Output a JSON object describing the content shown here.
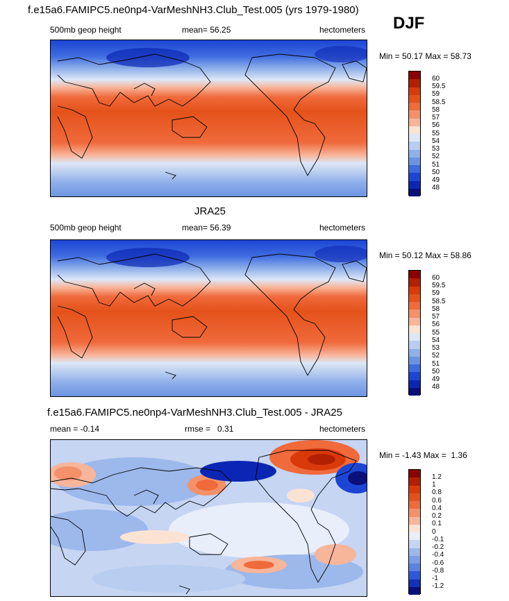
{
  "season": "DJF",
  "panels": [
    {
      "title": "f.e15a6.FAMIPC5.ne0np4-VarMeshNH3.Club_Test.005 (yrs 1979-1980)",
      "left_label": "500mb geop height",
      "mean_label": "mean=",
      "mean_value": "56.25",
      "units": "hectometers",
      "min_label": "Min =",
      "min_value": "50.17",
      "max_label": "Max =",
      "max_value": "58.73",
      "colorbar_labels": [
        "60",
        "59.5",
        "59",
        "58.5",
        "58",
        "57",
        "56",
        "55",
        "54",
        "53",
        "52",
        "51",
        "50",
        "49",
        "48"
      ]
    },
    {
      "title": "JRA25",
      "left_label": "500mb geop height",
      "mean_label": "mean=",
      "mean_value": "56.39",
      "units": "hectometers",
      "min_label": "Min =",
      "min_value": "50.12",
      "max_label": "Max =",
      "max_value": "58.86",
      "colorbar_labels": [
        "60",
        "59.5",
        "59",
        "58.5",
        "58",
        "57",
        "56",
        "55",
        "54",
        "53",
        "52",
        "51",
        "50",
        "49",
        "48"
      ]
    },
    {
      "title": "f.e15a6.FAMIPC5.ne0np4-VarMeshNH3.Club_Test.005 - JRA25",
      "left_label": "mean =  -0.14",
      "rmse_label": "rmse =",
      "rmse_value": "0.31",
      "units": "hectometers",
      "min_label": "Min =",
      "min_value": "-1.43",
      "max_label": "Max =",
      "max_value": "1.36",
      "colorbar_labels": [
        "1.2",
        "1",
        "0.8",
        "0.6",
        "0.4",
        "0.2",
        "0.1",
        "0",
        "-0.1",
        "-0.2",
        "-0.4",
        "-0.6",
        "-0.8",
        "-1",
        "-1.2"
      ]
    }
  ],
  "colors": {
    "abs_scale": [
      "#8b0000",
      "#b22000",
      "#d93a0a",
      "#e4521a",
      "#f06a3c",
      "#f4916a",
      "#f7b59a",
      "#fbe3d4",
      "#dde7f6",
      "#b8cdf0",
      "#8fb0ea",
      "#6b93e3",
      "#3e6be0",
      "#1c45d4",
      "#0b26b4",
      "#0a0f7a"
    ],
    "diff_scale": [
      "#8b0000",
      "#b22000",
      "#d93a0a",
      "#e4521a",
      "#f06a3c",
      "#f4916a",
      "#f7b59a",
      "#fbe3d4",
      "#e8eefa",
      "#c5d5f2",
      "#9db8eb",
      "#7b9ee6",
      "#5b82e0",
      "#2f58d8",
      "#1230b8",
      "#0a0f7a"
    ]
  }
}
